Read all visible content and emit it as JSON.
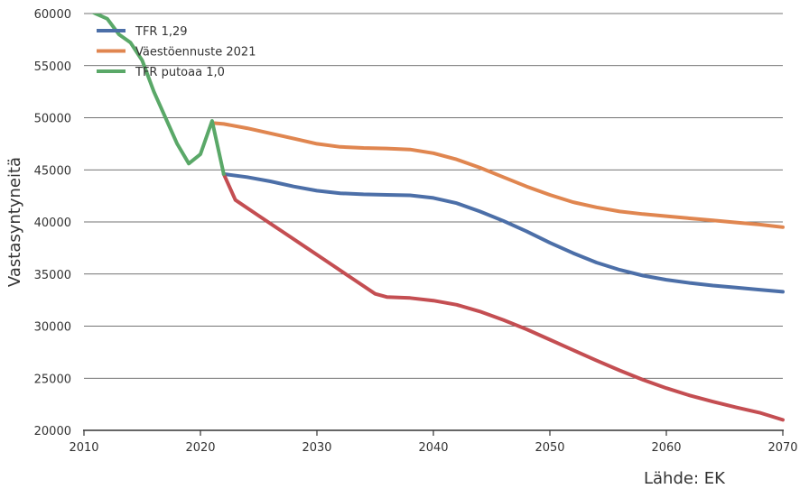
{
  "chart_data": {
    "type": "line",
    "xlabel": "",
    "ylabel": "Vastasyntyneitä",
    "xlim": [
      2010,
      2070
    ],
    "ylim": [
      20000,
      60000
    ],
    "x_ticks": [
      "2010",
      "2020",
      "2030",
      "2040",
      "2050",
      "2060",
      "2070"
    ],
    "y_ticks": [
      "20000",
      "25000",
      "30000",
      "35000",
      "40000",
      "45000",
      "50000",
      "55000",
      "60000"
    ],
    "grid": "horizontal",
    "legend_position": "top-left",
    "series": [
      {
        "name": "TFR 1,29",
        "color": "#4c6fa8",
        "x": [
          2022,
          2024,
          2026,
          2028,
          2030,
          2032,
          2034,
          2036,
          2038,
          2040,
          2042,
          2044,
          2046,
          2048,
          2050,
          2052,
          2054,
          2056,
          2058,
          2060,
          2062,
          2064,
          2066,
          2068,
          2070
        ],
        "y": [
          44600,
          44300,
          43900,
          43400,
          43000,
          42750,
          42650,
          42600,
          42550,
          42300,
          41800,
          41000,
          40100,
          39100,
          38000,
          37000,
          36100,
          35400,
          34850,
          34450,
          34150,
          33900,
          33700,
          33500,
          33300
        ]
      },
      {
        "name": "Väestöennuste 2021",
        "color": "#e08650",
        "x": [
          2021,
          2022,
          2024,
          2026,
          2028,
          2030,
          2032,
          2034,
          2036,
          2038,
          2040,
          2042,
          2044,
          2046,
          2048,
          2050,
          2052,
          2054,
          2056,
          2058,
          2060,
          2062,
          2064,
          2066,
          2068,
          2070
        ],
        "y": [
          49500,
          49400,
          49000,
          48500,
          48000,
          47500,
          47200,
          47100,
          47050,
          46950,
          46600,
          46000,
          45200,
          44300,
          43400,
          42600,
          41900,
          41400,
          41000,
          40750,
          40550,
          40350,
          40150,
          39950,
          39750,
          39500
        ]
      },
      {
        "name": "TFR putoaa 1,0",
        "color": "#5aa868",
        "x": [
          2010,
          2011,
          2012,
          2013,
          2014,
          2015,
          2016,
          2017,
          2018,
          2019,
          2020,
          2021,
          2022
        ],
        "y": [
          60500,
          60000,
          59500,
          58000,
          57200,
          55500,
          52500,
          50000,
          47500,
          45600,
          46500,
          49700,
          44600
        ]
      },
      {
        "name": "",
        "color": "#c44e52",
        "x": [
          2022,
          2023,
          2025,
          2027,
          2029,
          2031,
          2033,
          2035,
          2036,
          2038,
          2040,
          2042,
          2044,
          2046,
          2048,
          2050,
          2052,
          2054,
          2056,
          2058,
          2060,
          2062,
          2064,
          2066,
          2068,
          2070
        ],
        "y": [
          44600,
          42100,
          40600,
          39100,
          37600,
          36100,
          34600,
          33100,
          32800,
          32700,
          32450,
          32050,
          31400,
          30600,
          29700,
          28700,
          27700,
          26700,
          25750,
          24850,
          24050,
          23350,
          22750,
          22200,
          21700,
          21000
        ]
      }
    ],
    "legend": [
      {
        "label": "TFR 1,29",
        "color": "#4c6fa8"
      },
      {
        "label": "Väestöennuste 2021",
        "color": "#e08650"
      },
      {
        "label": "TFR putoaa 1,0",
        "color": "#5aa868"
      }
    ],
    "source": "Lähde: EK"
  }
}
